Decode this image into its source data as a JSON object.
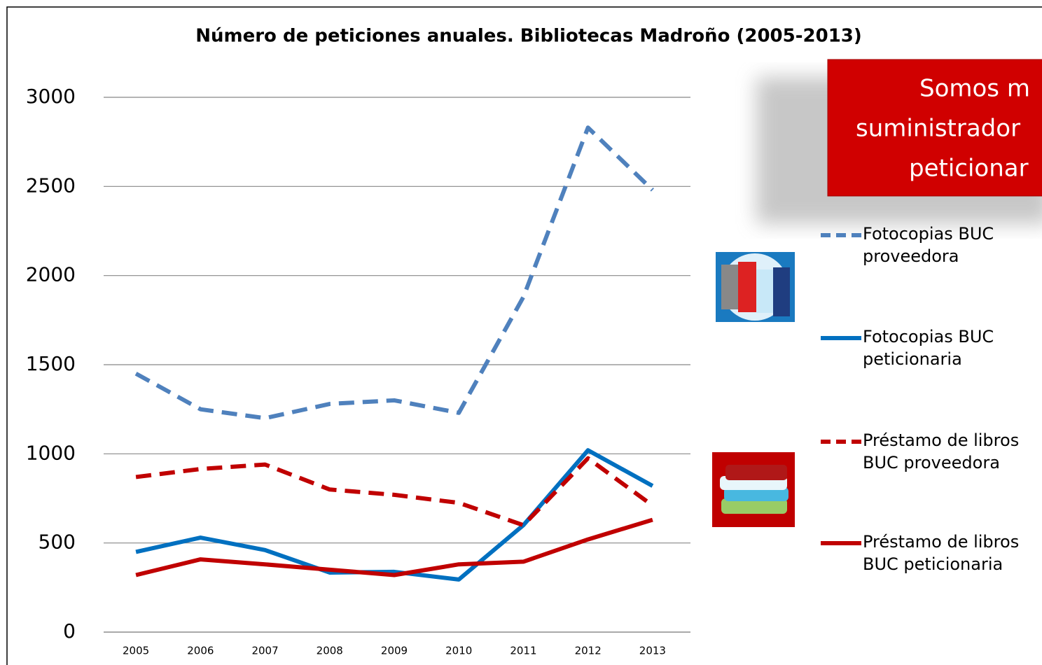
{
  "chart_data": {
    "type": "line",
    "title": "Número de peticiones anuales. Bibliotecas Madroño (2005-2013)",
    "annotation": [
      "Somos m",
      "suministrador",
      "peticionar"
    ],
    "categories": [
      "2005",
      "2006",
      "2007",
      "2008",
      "2009",
      "2010",
      "2011",
      "2012",
      "2013"
    ],
    "series": [
      {
        "name": "Fotocopias BUC proveedora",
        "color": "#4f81bd",
        "dash": true,
        "values": [
          1450,
          1250,
          1200,
          1280,
          1300,
          1230,
          1880,
          2830,
          2480
        ]
      },
      {
        "name": "Fotocopias BUC peticionaria",
        "color": "#0070c0",
        "dash": false,
        "values": [
          450,
          530,
          460,
          334,
          338,
          295,
          600,
          1020,
          820
        ]
      },
      {
        "name": "Préstamo de libros BUC proveedora",
        "color": "#c00000",
        "dash": true,
        "values": [
          870,
          915,
          940,
          800,
          770,
          725,
          600,
          975,
          710
        ]
      },
      {
        "name": "Préstamo de libros BUC peticionaria",
        "color": "#c00000",
        "dash": false,
        "values": [
          320,
          408,
          380,
          350,
          320,
          380,
          395,
          520,
          630
        ]
      }
    ],
    "ylim": [
      0,
      3000
    ],
    "yticks": [
      0,
      500,
      1000,
      1500,
      2000,
      2500,
      3000
    ],
    "grid": true,
    "legend": "right"
  }
}
